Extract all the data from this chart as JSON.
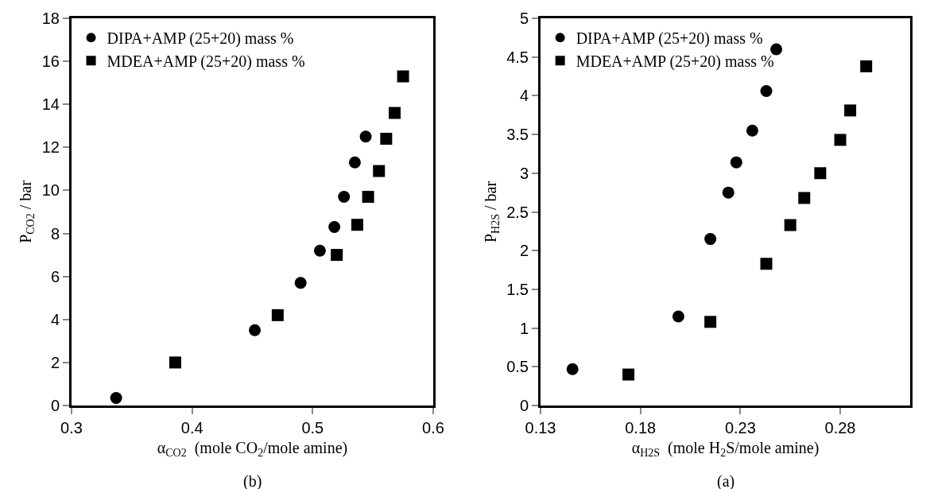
{
  "chart_data": [
    {
      "type": "scatter",
      "xlabel": "α$_{CO2}$  (mole CO$_{2}$/mole amine)",
      "ylabel": "P$_{CO2}$ / bar",
      "annotations": [
        "(b)"
      ],
      "xlim": [
        0.3,
        0.6
      ],
      "xticks": [
        0.3,
        0.4,
        0.5,
        0.6
      ],
      "ylim": [
        0,
        18
      ],
      "yticks": [
        0,
        2,
        4,
        6,
        8,
        10,
        12,
        14,
        16,
        18
      ],
      "grid": false,
      "legend": "top left",
      "series": [
        {
          "name": "DIPA+AMP (25+20) mass %",
          "color": "#000000",
          "marker": "circle",
          "x": [
            0.337,
            0.452,
            0.49,
            0.506,
            0.518,
            0.526,
            0.535,
            0.544
          ],
          "values": [
            0.35,
            3.5,
            5.7,
            7.2,
            8.3,
            9.7,
            11.3,
            12.5
          ]
        },
        {
          "name": "MDEA+AMP (25+20) mass %",
          "color": "#000000",
          "marker": "square",
          "x": [
            0.386,
            0.471,
            0.52,
            0.537,
            0.546,
            0.555,
            0.561,
            0.568,
            0.575
          ],
          "values": [
            2.0,
            4.2,
            7.0,
            8.4,
            9.7,
            10.9,
            12.4,
            13.6,
            15.3
          ]
        }
      ]
    },
    {
      "type": "scatter",
      "xlabel": "α$_{H2S}$  (mole H$_{2}$S/mole amine)",
      "ylabel": "P$_{H2S}$ / bar",
      "annotations": [
        "(a)"
      ],
      "xlim": [
        0.13,
        0.315
      ],
      "xticks": [
        0.13,
        0.18,
        0.23,
        0.28
      ],
      "ylim": [
        0,
        5
      ],
      "yticks": [
        0,
        0.5,
        1,
        1.5,
        2,
        2.5,
        3,
        3.5,
        4,
        4.5,
        5
      ],
      "grid": false,
      "legend": "top left",
      "series": [
        {
          "name": "DIPA+AMP (25+20) mass %",
          "color": "#000000",
          "marker": "circle",
          "x": [
            0.146,
            0.199,
            0.215,
            0.224,
            0.228,
            0.236,
            0.243,
            0.248
          ],
          "values": [
            0.47,
            1.15,
            2.15,
            2.75,
            3.14,
            3.55,
            4.06,
            4.6
          ]
        },
        {
          "name": "MDEA+AMP (25+20) mass %",
          "color": "#000000",
          "marker": "square",
          "x": [
            0.174,
            0.215,
            0.243,
            0.255,
            0.262,
            0.27,
            0.28,
            0.285,
            0.293
          ],
          "values": [
            0.4,
            1.08,
            1.83,
            2.33,
            2.68,
            3.0,
            3.43,
            3.81,
            4.38
          ]
        }
      ]
    }
  ]
}
